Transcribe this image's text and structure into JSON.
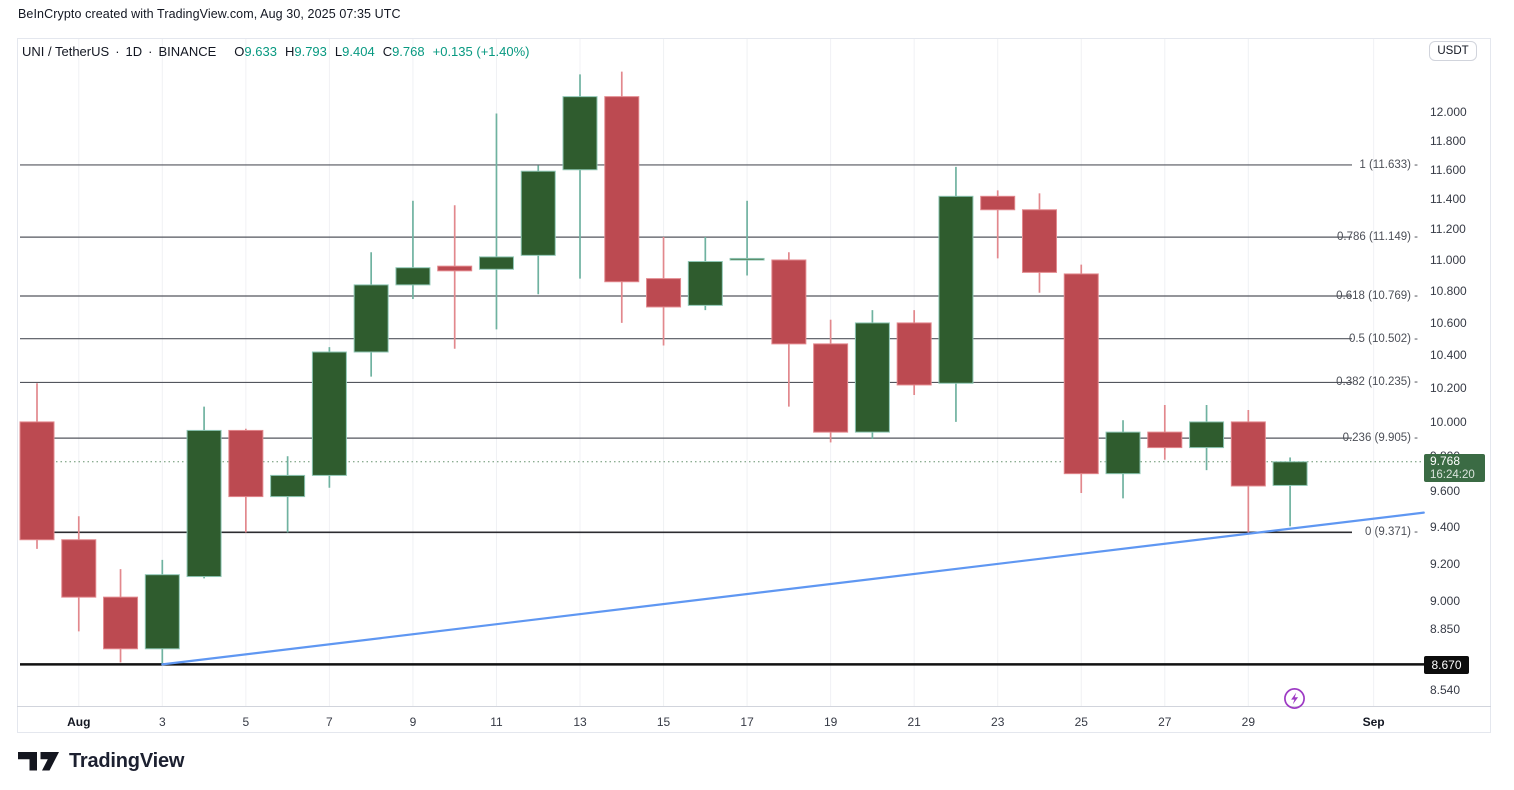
{
  "attribution": "BeInCrypto created with TradingView.com, Aug 30, 2025 07:35 UTC",
  "symbol_bar": {
    "symbol": "UNI / TetherUS",
    "separator": "·",
    "interval": "1D",
    "exchange": "BINANCE",
    "ohlc": [
      {
        "label": "O",
        "value": "9.633"
      },
      {
        "label": "H",
        "value": "9.793"
      },
      {
        "label": "L",
        "value": "9.404"
      },
      {
        "label": "C",
        "value": "9.768"
      }
    ],
    "change": "+0.135 (+1.40%)"
  },
  "price_axis": {
    "currency_badge": "USDT",
    "ticks": [
      "12.000",
      "11.800",
      "11.600",
      "11.400",
      "11.200",
      "11.000",
      "10.800",
      "10.600",
      "10.400",
      "10.200",
      "10.000",
      "9.800",
      "9.600",
      "9.400",
      "9.200",
      "9.000",
      "8.850",
      "8.540"
    ],
    "current_price_badge": {
      "price": "9.768",
      "countdown": "16:24:20"
    },
    "support_badge": {
      "price": "8.670"
    }
  },
  "time_axis": {
    "labels": [
      {
        "text": "Aug",
        "day_index": 1,
        "bold": true
      },
      {
        "text": "3",
        "day_index": 3
      },
      {
        "text": "5",
        "day_index": 5
      },
      {
        "text": "7",
        "day_index": 7
      },
      {
        "text": "9",
        "day_index": 9
      },
      {
        "text": "11",
        "day_index": 11
      },
      {
        "text": "13",
        "day_index": 13
      },
      {
        "text": "15",
        "day_index": 15
      },
      {
        "text": "17",
        "day_index": 17
      },
      {
        "text": "19",
        "day_index": 19
      },
      {
        "text": "21",
        "day_index": 21
      },
      {
        "text": "23",
        "day_index": 23
      },
      {
        "text": "25",
        "day_index": 25
      },
      {
        "text": "27",
        "day_index": 27
      },
      {
        "text": "29",
        "day_index": 29
      },
      {
        "text": "Sep",
        "day_index": 32,
        "bold": true
      }
    ]
  },
  "footer": {
    "logo_text": "TradingView"
  },
  "colors": {
    "up_body": "#2f5c2e",
    "up_border": "#8ec6b4",
    "up_wick": "#6fb2a0",
    "down_body": "#bc4a51",
    "down_border": "#e2888d",
    "down_wick": "#e2888d",
    "fib_line": "#53565e",
    "fib_zero_line": "#2c2c30",
    "support_line": "#111111",
    "close_dotted": "#66926e",
    "trendline": "#5f97f2",
    "grid": "#f0f1f4",
    "badge_green": "#3b6b44",
    "accent_green": "#089981",
    "flash_purple": "#9d3ac4"
  },
  "chart_data": {
    "type": "candlestick",
    "title": "UNI / TetherUS · 1D · BINANCE",
    "price_scale": "log",
    "visible_price_range": [
      8.43,
      12.45
    ],
    "current_price": 9.768,
    "support_level": {
      "price": 8.67
    },
    "trendline": {
      "from": {
        "date": "Aug 3",
        "day_index": 3,
        "price": 8.67
      },
      "to": {
        "date": "Sep 2 (projected)",
        "day_index": 33.2,
        "price": 9.48
      }
    },
    "fib_levels": [
      {
        "label": "1 (11.633) -",
        "ratio": 1,
        "price": 11.633
      },
      {
        "label": "0.786 (11.149) -",
        "ratio": 0.786,
        "price": 11.149
      },
      {
        "label": "0.618 (10.769) -",
        "ratio": 0.618,
        "price": 10.769
      },
      {
        "label": "0.5 (10.502) -",
        "ratio": 0.5,
        "price": 10.502
      },
      {
        "label": "0.382 (10.235) -",
        "ratio": 0.382,
        "price": 10.235
      },
      {
        "label": "0.236 (9.905) -",
        "ratio": 0.236,
        "price": 9.905
      },
      {
        "label": "0 (9.371) -",
        "ratio": 0,
        "price": 9.371
      }
    ],
    "candles": [
      {
        "date": "Jul 31",
        "o": 10.0,
        "h": 10.23,
        "l": 9.28,
        "c": 9.33
      },
      {
        "date": "Aug 1",
        "o": 9.33,
        "h": 9.46,
        "l": 8.84,
        "c": 9.02
      },
      {
        "date": "Aug 2",
        "o": 9.02,
        "h": 9.17,
        "l": 8.68,
        "c": 8.75
      },
      {
        "date": "Aug 3",
        "o": 8.75,
        "h": 9.22,
        "l": 8.67,
        "c": 9.14
      },
      {
        "date": "Aug 4",
        "o": 9.13,
        "h": 10.09,
        "l": 9.12,
        "c": 9.95
      },
      {
        "date": "Aug 5",
        "o": 9.95,
        "h": 9.96,
        "l": 9.37,
        "c": 9.57
      },
      {
        "date": "Aug 6",
        "o": 9.57,
        "h": 9.8,
        "l": 9.37,
        "c": 9.69
      },
      {
        "date": "Aug 7",
        "o": 9.69,
        "h": 10.45,
        "l": 9.62,
        "c": 10.42
      },
      {
        "date": "Aug 8",
        "o": 10.42,
        "h": 11.05,
        "l": 10.27,
        "c": 10.84
      },
      {
        "date": "Aug 9",
        "o": 10.84,
        "h": 11.39,
        "l": 10.75,
        "c": 10.95
      },
      {
        "date": "Aug 10",
        "o": 10.96,
        "h": 11.36,
        "l": 10.44,
        "c": 10.93
      },
      {
        "date": "Aug 11",
        "o": 10.94,
        "h": 11.99,
        "l": 10.56,
        "c": 11.02
      },
      {
        "date": "Aug 12",
        "o": 11.03,
        "h": 11.63,
        "l": 10.78,
        "c": 11.59
      },
      {
        "date": "Aug 13",
        "o": 11.6,
        "h": 12.27,
        "l": 10.88,
        "c": 12.11
      },
      {
        "date": "Aug 14",
        "o": 12.11,
        "h": 12.29,
        "l": 10.6,
        "c": 10.86
      },
      {
        "date": "Aug 15",
        "o": 10.88,
        "h": 11.15,
        "l": 10.46,
        "c": 10.7
      },
      {
        "date": "Aug 16",
        "o": 10.71,
        "h": 11.15,
        "l": 10.68,
        "c": 10.99
      },
      {
        "date": "Aug 17",
        "o": 11.0,
        "h": 11.39,
        "l": 10.9,
        "c": 11.01
      },
      {
        "date": "Aug 18",
        "o": 11.0,
        "h": 11.05,
        "l": 10.09,
        "c": 10.47
      },
      {
        "date": "Aug 19",
        "o": 10.47,
        "h": 10.62,
        "l": 9.88,
        "c": 9.94
      },
      {
        "date": "Aug 20",
        "o": 9.94,
        "h": 10.68,
        "l": 9.9,
        "c": 10.6
      },
      {
        "date": "Aug 21",
        "o": 10.6,
        "h": 10.68,
        "l": 10.16,
        "c": 10.22
      },
      {
        "date": "Aug 22",
        "o": 10.23,
        "h": 11.62,
        "l": 10.0,
        "c": 11.42
      },
      {
        "date": "Aug 23",
        "o": 11.42,
        "h": 11.46,
        "l": 11.01,
        "c": 11.33
      },
      {
        "date": "Aug 24",
        "o": 11.33,
        "h": 11.44,
        "l": 10.79,
        "c": 10.92
      },
      {
        "date": "Aug 25",
        "o": 10.91,
        "h": 10.97,
        "l": 9.59,
        "c": 9.7
      },
      {
        "date": "Aug 26",
        "o": 9.7,
        "h": 10.01,
        "l": 9.56,
        "c": 9.94
      },
      {
        "date": "Aug 27",
        "o": 9.94,
        "h": 10.1,
        "l": 9.78,
        "c": 9.85
      },
      {
        "date": "Aug 28",
        "o": 9.85,
        "h": 10.1,
        "l": 9.72,
        "c": 10.0
      },
      {
        "date": "Aug 29",
        "o": 10.0,
        "h": 10.07,
        "l": 9.37,
        "c": 9.63
      },
      {
        "date": "Aug 30",
        "o": 9.633,
        "h": 9.793,
        "l": 9.404,
        "c": 9.768
      }
    ]
  }
}
